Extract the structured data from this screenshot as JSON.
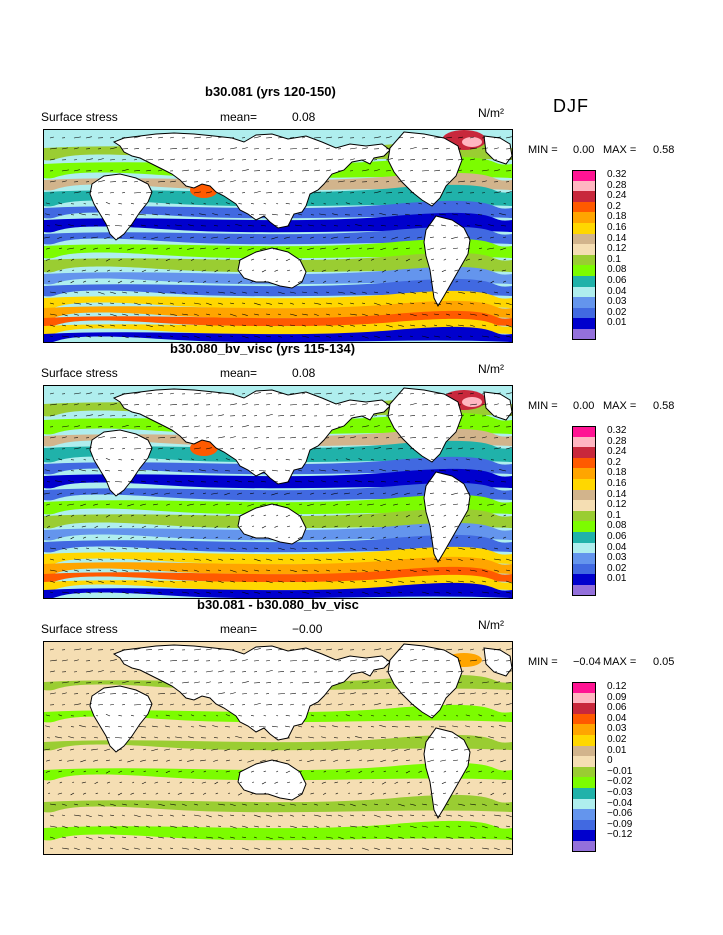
{
  "season": "DJF",
  "panels": [
    {
      "title": "b30.081 (yrs 120-150)",
      "field": "Surface stress",
      "mean_label": "mean=",
      "mean_value": "0.08",
      "units": "N/m²",
      "min_label": "MIN =",
      "min_value": "0.00",
      "max_label": "MAX =",
      "max_value": "0.58",
      "legend": [
        {
          "label": "0.32",
          "color": "#ff1493"
        },
        {
          "label": "0.28",
          "color": "#ffb6c1"
        },
        {
          "label": "0.24",
          "color": "#c8283c"
        },
        {
          "label": "0.2",
          "color": "#ff5a00"
        },
        {
          "label": "0.18",
          "color": "#ffa500"
        },
        {
          "label": "0.16",
          "color": "#ffd700"
        },
        {
          "label": "0.14",
          "color": "#d2b48c"
        },
        {
          "label": "0.12",
          "color": "#f5deb3"
        },
        {
          "label": "0.1",
          "color": "#9acd32"
        },
        {
          "label": "0.08",
          "color": "#7cfc00"
        },
        {
          "label": "0.06",
          "color": "#20b2aa"
        },
        {
          "label": "0.04",
          "color": "#afeeee"
        },
        {
          "label": "0.03",
          "color": "#6495ed"
        },
        {
          "label": "0.02",
          "color": "#4169e1"
        },
        {
          "label": "0.01",
          "color": "#0000cd"
        },
        {
          "label": "",
          "color": "#9370db"
        }
      ]
    },
    {
      "title": "b30.080_bv_visc (yrs 115-134)",
      "field": "Surface stress",
      "mean_label": "mean=",
      "mean_value": "0.08",
      "units": "N/m²",
      "min_label": "MIN =",
      "min_value": "0.00",
      "max_label": "MAX =",
      "max_value": "0.58",
      "legend": [
        {
          "label": "0.32",
          "color": "#ff1493"
        },
        {
          "label": "0.28",
          "color": "#ffb6c1"
        },
        {
          "label": "0.24",
          "color": "#c8283c"
        },
        {
          "label": "0.2",
          "color": "#ff5a00"
        },
        {
          "label": "0.18",
          "color": "#ffa500"
        },
        {
          "label": "0.16",
          "color": "#ffd700"
        },
        {
          "label": "0.14",
          "color": "#d2b48c"
        },
        {
          "label": "0.12",
          "color": "#f5deb3"
        },
        {
          "label": "0.1",
          "color": "#9acd32"
        },
        {
          "label": "0.08",
          "color": "#7cfc00"
        },
        {
          "label": "0.06",
          "color": "#20b2aa"
        },
        {
          "label": "0.04",
          "color": "#afeeee"
        },
        {
          "label": "0.03",
          "color": "#6495ed"
        },
        {
          "label": "0.02",
          "color": "#4169e1"
        },
        {
          "label": "0.01",
          "color": "#0000cd"
        },
        {
          "label": "",
          "color": "#9370db"
        }
      ]
    },
    {
      "title": "b30.081 - b30.080_bv_visc",
      "field": "Surface stress",
      "mean_label": "mean=",
      "mean_value": "−0.00",
      "units": "N/m²",
      "min_label": "MIN =",
      "min_value": "−0.04",
      "max_label": "MAX =",
      "max_value": "0.05",
      "legend": [
        {
          "label": "0.12",
          "color": "#ff1493"
        },
        {
          "label": "0.09",
          "color": "#ffb6c1"
        },
        {
          "label": "0.06",
          "color": "#c8283c"
        },
        {
          "label": "0.04",
          "color": "#ff5a00"
        },
        {
          "label": "0.03",
          "color": "#ffa500"
        },
        {
          "label": "0.02",
          "color": "#ffd700"
        },
        {
          "label": "0.01",
          "color": "#d2b48c"
        },
        {
          "label": "0",
          "color": "#f5deb3"
        },
        {
          "label": "−0.01",
          "color": "#9acd32"
        },
        {
          "label": "−0.02",
          "color": "#7cfc00"
        },
        {
          "label": "−0.03",
          "color": "#20b2aa"
        },
        {
          "label": "−0.04",
          "color": "#afeeee"
        },
        {
          "label": "−0.06",
          "color": "#6495ed"
        },
        {
          "label": "−0.09",
          "color": "#4169e1"
        },
        {
          "label": "−0.12",
          "color": "#0000cd"
        },
        {
          "label": "",
          "color": "#9370db"
        }
      ]
    }
  ]
}
